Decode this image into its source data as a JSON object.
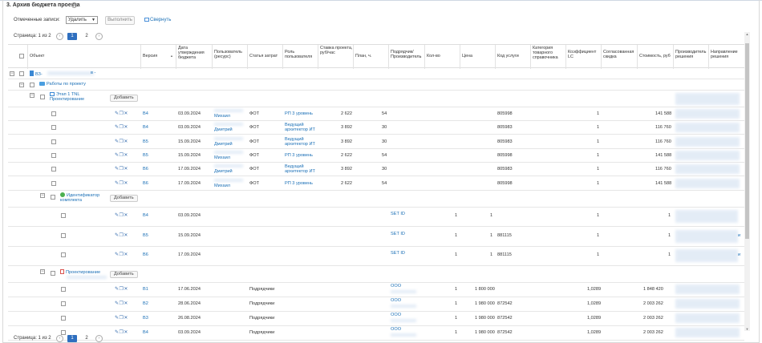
{
  "section": {
    "title": "3. Архив бюджета проекта"
  },
  "toolbar": {
    "bulk_label": "Отмеченные записи:",
    "bulk_value": "Удалить",
    "execute_label": "Выполнить",
    "collapse_label": "Свернуть"
  },
  "pager": {
    "label": "Страница: 1 из 2",
    "pages": [
      "1",
      "2"
    ],
    "prev": "‹",
    "next": "›"
  },
  "columns": {
    "object": "Объект",
    "version": "Версия",
    "approve_date": "Дата утверждения бюджета",
    "user": "Пользователь (ресурс)",
    "cost_item": "Статья затрат",
    "role": "Роль пользователя",
    "rate": "Ставка проекта, руб/час",
    "plan": "План, ч.",
    "contractor": "Подрядчик/ Производитель",
    "qty": "Кол-во",
    "price": "Цена",
    "service_code": "Код услуги",
    "category": "Категория товарного справочника",
    "coef": "Коэффициент LC",
    "discount": "Согласованная скидка",
    "cost": "Стоимость, руб",
    "producer_decision": "Производитель решения",
    "direction": "Направление решения"
  },
  "tree": {
    "root_code": "ВЗ-",
    "root_suffix": "в -",
    "works": "Работы по проекту",
    "stage1": "Этап 1 TNL Проектирование",
    "add_label": "Добавить",
    "identifier": "Идентификатор комплекта",
    "design": "Проектирование"
  },
  "stage1_rows": [
    {
      "version": "В4",
      "date": "03.09.2024",
      "user": "Михаил",
      "cost_item": "ФОТ",
      "role": "РП 3 уровень",
      "rate": "2 622",
      "plan": "54",
      "code": "805998",
      "coef": "1",
      "cost": "141 588"
    },
    {
      "version": "В4",
      "date": "03.09.2024",
      "user": "Дмитрий",
      "cost_item": "ФОТ",
      "role": "Ведущий архитектор ИТ",
      "rate": "3 892",
      "plan": "30",
      "code": "805983",
      "coef": "1",
      "cost": "116 760"
    },
    {
      "version": "В5",
      "date": "15.09.2024",
      "user": "Дмитрий",
      "cost_item": "ФОТ",
      "role": "Ведущий архитектор ИТ",
      "rate": "3 892",
      "plan": "30",
      "code": "805983",
      "coef": "1",
      "cost": "116 760"
    },
    {
      "version": "В5",
      "date": "15.09.2024",
      "user": "Михаил",
      "cost_item": "ФОТ",
      "role": "РП 3 уровень",
      "rate": "2 622",
      "plan": "54",
      "code": "805998",
      "coef": "1",
      "cost": "141 588"
    },
    {
      "version": "В6",
      "date": "17.09.2024",
      "user": "Дмитрий",
      "cost_item": "ФОТ",
      "role": "Ведущий архитектор ИТ",
      "rate": "3 892",
      "plan": "30",
      "code": "805983",
      "coef": "1",
      "cost": "116 760"
    },
    {
      "version": "В6",
      "date": "17.09.2024",
      "user": "Михаил",
      "cost_item": "ФОТ",
      "role": "РП 3 уровень",
      "rate": "2 622",
      "plan": "54",
      "code": "805998",
      "coef": "1",
      "cost": "141 588"
    }
  ],
  "ident_rows": [
    {
      "version": "В4",
      "date": "03.09.2024",
      "contractor": "SET ID",
      "qty": "1",
      "price": "1",
      "code": "",
      "coef": "1",
      "cost": "1",
      "dir": ""
    },
    {
      "version": "В5",
      "date": "15.09.2024",
      "contractor": "SET ID",
      "qty": "1",
      "price": "1",
      "code": "881115",
      "coef": "1",
      "cost": "1",
      "dir": "и"
    },
    {
      "version": "В6",
      "date": "17.09.2024",
      "contractor": "SET ID",
      "qty": "1",
      "price": "1",
      "code": "881115",
      "coef": "1",
      "cost": "1",
      "dir": "и"
    }
  ],
  "design_rows": [
    {
      "version": "В1",
      "date": "17.06.2024",
      "cost_item": "Подрядчики",
      "contractor": "ООО",
      "qty": "1",
      "price": "1 800 000",
      "code": "",
      "coef": "1,0289",
      "cost": "1 848 420"
    },
    {
      "version": "В2",
      "date": "28.06.2024",
      "cost_item": "Подрядчики",
      "contractor": "ООО",
      "qty": "1",
      "price": "1 980 000",
      "code": "872542",
      "coef": "1,0289",
      "cost": "2 003 262"
    },
    {
      "version": "В3",
      "date": "26.08.2024",
      "cost_item": "Подрядчики",
      "contractor": "ООО",
      "qty": "1",
      "price": "1 980 000",
      "code": "872542",
      "coef": "1,0289",
      "cost": "2 003 262"
    },
    {
      "version": "В4",
      "date": "03.09.2024",
      "cost_item": "Подрядчики",
      "contractor": "ООО",
      "qty": "1",
      "price": "1 980 000",
      "code": "872542",
      "coef": "1,0289",
      "cost": "2 003 262"
    }
  ],
  "icons": {
    "edit": "✎",
    "copy": "❐",
    "delete": "✕",
    "help": "?",
    "sort": "▲"
  }
}
